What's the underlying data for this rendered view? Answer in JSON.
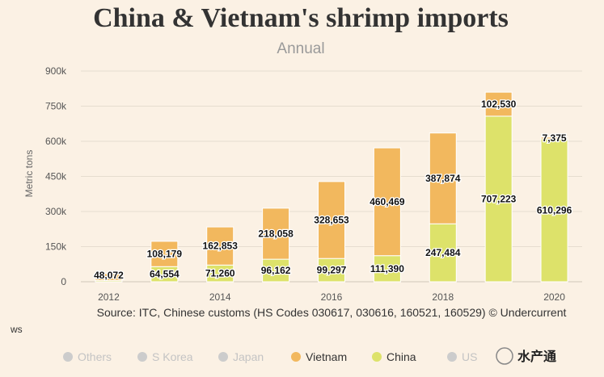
{
  "chart_data": {
    "type": "bar",
    "stacked": true,
    "title": "China & Vietnam's shrimp imports",
    "subtitle": "Annual",
    "ylabel": "Metric tons",
    "ylim": [
      0,
      900000
    ],
    "yticks": [
      0,
      150000,
      300000,
      450000,
      600000,
      750000,
      900000
    ],
    "ytick_labels": [
      "0",
      "150k",
      "300k",
      "450k",
      "600k",
      "750k",
      "900k"
    ],
    "categories": [
      2012,
      2013,
      2014,
      2015,
      2016,
      2017,
      2018,
      2019,
      2020
    ],
    "xtick_labels": [
      "2012",
      "2014",
      "2016",
      "2018",
      "2020"
    ],
    "xtick_years": [
      2012,
      2014,
      2016,
      2018,
      2020
    ],
    "series": [
      {
        "name": "China",
        "color": "#dde26a",
        "values": [
          5000,
          64554,
          71260,
          96162,
          99297,
          111390,
          247484,
          707223,
          610296
        ],
        "labels": [
          "",
          "64,554",
          "71,260",
          "96,162",
          "99,297",
          "111,390",
          "247,484",
          "707,223",
          "610,296"
        ]
      },
      {
        "name": "Vietnam",
        "color": "#f2b85e",
        "values": [
          30000,
          108179,
          162853,
          218058,
          328653,
          460469,
          387874,
          102530,
          7375
        ],
        "labels": [
          "",
          "108,179",
          "162,853",
          "218,058",
          "328,653",
          "460,469",
          "387,874",
          "102,530",
          "7,375"
        ]
      }
    ],
    "extra_labels": [
      {
        "category": 2012,
        "text": "48,072"
      }
    ],
    "grid": true,
    "legend": {
      "position": "bottom",
      "items": [
        {
          "name": "Others",
          "color": "#cccccc",
          "active": false
        },
        {
          "name": "S Korea",
          "color": "#cccccc",
          "active": false
        },
        {
          "name": "Japan",
          "color": "#cccccc",
          "active": false
        },
        {
          "name": "Vietnam",
          "color": "#f2b85e",
          "active": true
        },
        {
          "name": "China",
          "color": "#dde26a",
          "active": true
        },
        {
          "name": "US",
          "color": "#cccccc",
          "active": false
        }
      ]
    },
    "source": "Source: ITC, Chinese customs (HS Codes 030617, 030616, 160521, 160529) © Undercurrent"
  },
  "ws_label": "ws",
  "watermark": "水产通"
}
